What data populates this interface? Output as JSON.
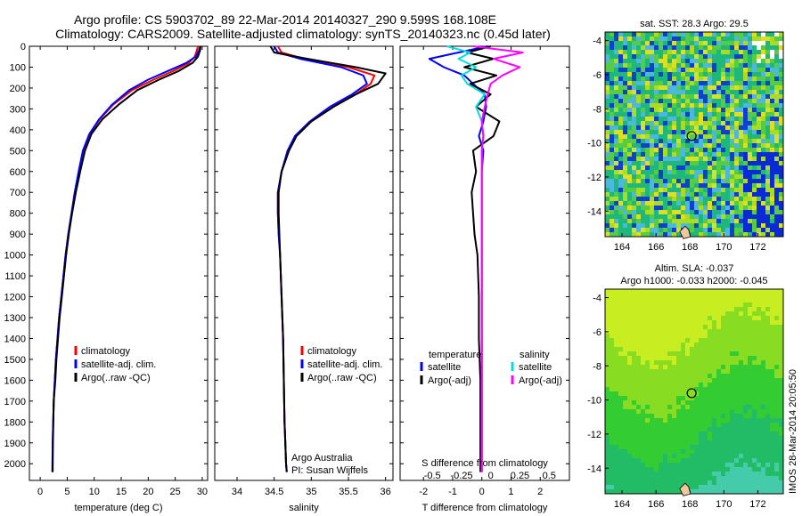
{
  "title_line1": "Argo profile: CS 5903702_89 22-Mar-2014 20140327_290 9.599S 168.108E",
  "title_line2": "Climatology: CARS2009. Satellite-adjusted climatology: synTS_20140323.nc (0.45d later)",
  "side_label": "IMOS 28-Mar-2014 20:05:50",
  "colors": {
    "climatology": "#ff0000",
    "satellite": "#0000ff",
    "argo": "#000000",
    "sal_satellite": "#00dddd",
    "sal_argo": "#ff00ff",
    "sst_background": "#1ab87f",
    "sla_background": "#22cc33"
  },
  "chart_data": [
    {
      "type": "line",
      "name": "temperature",
      "xlabel": "temperature (deg C)",
      "ylabel": "",
      "xlim": [
        -2,
        31
      ],
      "ylim": [
        2080,
        0
      ],
      "xticks": [
        "0",
        "5",
        "10",
        "15",
        "20",
        "25",
        "30"
      ],
      "yticks": [
        "0",
        "100",
        "200",
        "300",
        "400",
        "500",
        "600",
        "700",
        "800",
        "900",
        "1000",
        "1100",
        "1200",
        "1300",
        "1400",
        "1500",
        "1600",
        "1700",
        "1800",
        "1900",
        "2000"
      ],
      "legend": [
        "climatology",
        "satellite-adj. clim.",
        "Argo(..raw -QC)"
      ],
      "series": [
        {
          "name": "climatology",
          "x": [
            29.2,
            29.0,
            28.6,
            27.5,
            24.5,
            21.0,
            17.0,
            13.5,
            11.0,
            9.2,
            8.0,
            7.2,
            6.4,
            5.8,
            5.2,
            4.7,
            4.3,
            3.9,
            3.5,
            3.2,
            2.9,
            2.7,
            2.5,
            2.3,
            2.25
          ],
          "y": [
            0,
            20,
            50,
            80,
            120,
            160,
            210,
            280,
            350,
            420,
            500,
            600,
            700,
            800,
            900,
            1000,
            1100,
            1200,
            1300,
            1400,
            1500,
            1600,
            1700,
            1900,
            2040
          ]
        },
        {
          "name": "satellite-adj. clim.",
          "x": [
            29.6,
            29.4,
            28.8,
            27.0,
            23.5,
            20.0,
            16.5,
            13.3,
            10.9,
            9.1,
            7.9,
            7.1,
            6.4,
            5.8,
            5.2,
            4.7,
            4.3,
            3.9,
            3.5,
            3.2,
            2.9,
            2.7,
            2.5,
            2.3,
            2.25
          ],
          "y": [
            0,
            20,
            50,
            80,
            120,
            160,
            210,
            280,
            350,
            420,
            500,
            600,
            700,
            800,
            900,
            1000,
            1100,
            1200,
            1300,
            1400,
            1500,
            1600,
            1700,
            1900,
            2040
          ]
        },
        {
          "name": "Argo(..raw -QC)",
          "x": [
            29.7,
            29.6,
            29.2,
            28.2,
            25.5,
            22.0,
            18.0,
            14.5,
            11.5,
            9.5,
            8.3,
            7.4,
            6.6,
            5.9,
            5.3,
            4.8,
            4.4,
            4.0,
            3.6,
            3.3,
            3.0,
            2.8,
            2.5,
            2.35,
            2.3
          ],
          "y": [
            0,
            20,
            50,
            80,
            120,
            160,
            210,
            280,
            350,
            420,
            500,
            600,
            700,
            800,
            900,
            1000,
            1100,
            1200,
            1300,
            1400,
            1500,
            1600,
            1700,
            1900,
            2040
          ]
        }
      ]
    },
    {
      "type": "line",
      "name": "salinity",
      "xlabel": "salinity",
      "ylabel": "",
      "xlim": [
        33.7,
        36.1
      ],
      "ylim": [
        2080,
        0
      ],
      "xticks": [
        "34",
        "34.5",
        "35",
        "35.5",
        "36"
      ],
      "legend": [
        "climatology",
        "satellite-adj. clim.",
        "Argo(..raw -QC)"
      ],
      "annotation": [
        "Argo Australia",
        "PI: Susan Wijffels"
      ],
      "series": [
        {
          "name": "climatology",
          "x": [
            34.55,
            34.6,
            34.9,
            35.5,
            35.85,
            35.8,
            35.6,
            35.3,
            35.0,
            34.8,
            34.7,
            34.6,
            34.55,
            34.55,
            34.56,
            34.58,
            34.6,
            34.62,
            34.63,
            34.64,
            34.65,
            34.66,
            34.67
          ],
          "y": [
            0,
            30,
            60,
            100,
            140,
            180,
            230,
            290,
            360,
            430,
            500,
            600,
            700,
            800,
            900,
            1000,
            1200,
            1400,
            1600,
            1800,
            1900,
            2000,
            2040
          ]
        },
        {
          "name": "satellite-adj. clim.",
          "x": [
            34.5,
            34.55,
            34.85,
            35.4,
            35.7,
            35.75,
            35.55,
            35.25,
            34.98,
            34.78,
            34.68,
            34.6,
            34.55,
            34.55,
            34.56,
            34.58,
            34.6,
            34.62,
            34.63,
            34.64,
            34.65,
            34.66,
            34.67
          ],
          "y": [
            0,
            30,
            60,
            100,
            140,
            180,
            230,
            290,
            360,
            430,
            500,
            600,
            700,
            800,
            900,
            1000,
            1200,
            1400,
            1600,
            1800,
            1900,
            2000,
            2040
          ]
        },
        {
          "name": "Argo(..raw -QC)",
          "x": [
            34.45,
            34.5,
            34.95,
            35.6,
            36.0,
            35.9,
            35.6,
            35.3,
            35.0,
            34.8,
            34.7,
            34.6,
            34.56,
            34.56,
            34.57,
            34.58,
            34.6,
            34.62,
            34.63,
            34.64,
            34.65,
            34.66,
            34.67
          ],
          "y": [
            0,
            30,
            60,
            100,
            130,
            180,
            230,
            290,
            360,
            430,
            500,
            600,
            700,
            800,
            900,
            1000,
            1200,
            1400,
            1600,
            1800,
            1900,
            2000,
            2040
          ]
        }
      ]
    },
    {
      "type": "line",
      "name": "differences",
      "xlabel": "T difference from climatology",
      "xlabel_top": "S difference from climatology",
      "xlim": [
        -2.8,
        3.0
      ],
      "ylim": [
        2080,
        0
      ],
      "xticks": [
        "-2",
        "-1",
        "0",
        "1",
        "2"
      ],
      "xticks_s": [
        "-0.5",
        "-0.25",
        "0",
        "0.25",
        "0.5"
      ],
      "legend_t": {
        "title": "temperature",
        "items": [
          "satellite",
          "Argo(-adj)"
        ]
      },
      "legend_s": {
        "title": "salinity",
        "items": [
          "satellite",
          "Argo(-adj)"
        ]
      },
      "series": [
        {
          "name": "T satellite",
          "x": [
            0.2,
            -0.8,
            -1.8,
            -1.3,
            -0.6,
            -0.3,
            0.1,
            0.15,
            0.05,
            -0.1,
            0.05,
            0.0,
            0.0,
            0.0,
            0.0,
            0.0,
            0.0,
            0.0,
            0.0,
            0.0,
            0.0
          ],
          "y": [
            0,
            30,
            60,
            100,
            140,
            180,
            230,
            290,
            360,
            430,
            500,
            600,
            700,
            800,
            900,
            1000,
            1200,
            1400,
            1600,
            1800,
            2040
          ]
        },
        {
          "name": "T Argo(-adj)",
          "x": [
            0.3,
            -0.5,
            0.4,
            -0.6,
            0.5,
            -0.4,
            0.3,
            -0.2,
            0.6,
            0.4,
            -0.3,
            -0.2,
            -0.35,
            -0.3,
            -0.25,
            -0.15,
            -0.1,
            -0.1,
            -0.05,
            -0.05,
            -0.05
          ],
          "y": [
            0,
            30,
            60,
            100,
            140,
            180,
            230,
            290,
            360,
            430,
            500,
            600,
            700,
            800,
            900,
            1000,
            1200,
            1400,
            1600,
            1800,
            2040
          ]
        },
        {
          "name": "S satellite",
          "x": [
            -1.2,
            -0.4,
            -0.8,
            -0.2,
            -0.7,
            -0.5,
            0.1,
            -0.2,
            0.0,
            0.05,
            0.0,
            0.0,
            0.0,
            0.0,
            0.0,
            0.0,
            0.0,
            0.0,
            0.0,
            0.0,
            0.0
          ],
          "y": [
            0,
            30,
            60,
            100,
            140,
            180,
            230,
            290,
            360,
            430,
            500,
            600,
            700,
            800,
            900,
            1000,
            1200,
            1400,
            1600,
            1800,
            2040
          ]
        },
        {
          "name": "S Argo(-adj)",
          "x": [
            -0.3,
            1.4,
            0.4,
            1.3,
            0.7,
            0.3,
            0.2,
            0.1,
            0.0,
            0.05,
            0.0,
            0.0,
            0.0,
            0.0,
            0.0,
            0.0,
            0.0,
            0.0,
            0.0,
            0.0,
            0.0
          ],
          "y": [
            0,
            30,
            60,
            100,
            140,
            180,
            230,
            290,
            360,
            430,
            500,
            600,
            700,
            800,
            900,
            1000,
            1200,
            1400,
            1600,
            1800,
            2040
          ]
        }
      ]
    },
    {
      "type": "heatmap",
      "name": "sst_map",
      "title": "sat. SST: 28.3  Argo: 29.5",
      "xlim": [
        163,
        173.5
      ],
      "ylim": [
        -15.5,
        -3.5
      ],
      "xticks": [
        "164",
        "166",
        "168",
        "170",
        "172"
      ],
      "yticks": [
        "-4",
        "-6",
        "-8",
        "-10",
        "-12",
        "-14"
      ],
      "marker": {
        "lon": 168.1,
        "lat": -9.6
      }
    },
    {
      "type": "heatmap",
      "name": "sla_map",
      "title_line1": "Altim. SLA: -0.037",
      "title_line2": "Argo h1000: -0.033  h2000: -0.045",
      "xlim": [
        163,
        173.5
      ],
      "ylim": [
        -15.5,
        -3.5
      ],
      "xticks": [
        "164",
        "166",
        "168",
        "170",
        "172"
      ],
      "yticks": [
        "-4",
        "-6",
        "-8",
        "-10",
        "-12",
        "-14"
      ],
      "marker": {
        "lon": 168.1,
        "lat": -9.6
      }
    }
  ]
}
